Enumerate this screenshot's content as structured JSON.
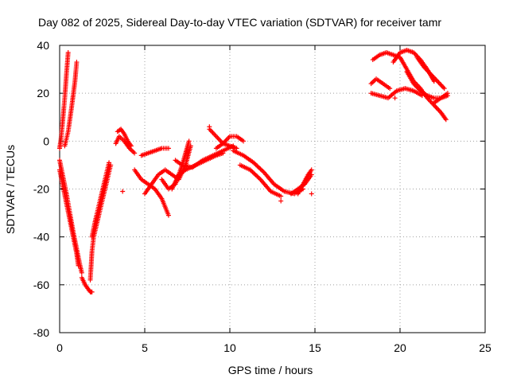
{
  "chart_data": {
    "type": "scatter",
    "title": "Day 082 of 2025, Sidereal Day-to-day VTEC variation (SDTVAR) for receiver tamr",
    "xlabel": "GPS time / hours",
    "ylabel": "SDTVAR / TECUs",
    "xlim": [
      0,
      25
    ],
    "ylim": [
      -80,
      40
    ],
    "xticks": [
      0,
      5,
      10,
      15,
      20,
      25
    ],
    "yticks": [
      -80,
      -60,
      -40,
      -20,
      0,
      20,
      40
    ],
    "grid": true,
    "marker": "+",
    "color": "#ff0000",
    "tracks": [
      {
        "x": [
          0.0,
          0.1,
          0.2,
          0.3,
          0.4,
          0.5
        ],
        "y": [
          -3,
          2,
          10,
          18,
          28,
          37
        ]
      },
      {
        "x": [
          0.3,
          0.5,
          0.7,
          0.9,
          1.0
        ],
        "y": [
          -2,
          4,
          14,
          25,
          33
        ]
      },
      {
        "x": [
          0.0,
          0.2,
          0.4,
          0.6,
          0.8,
          1.0,
          1.2,
          1.3
        ],
        "y": [
          -8,
          -15,
          -22,
          -30,
          -38,
          -45,
          -52,
          -55
        ]
      },
      {
        "x": [
          0.0,
          0.2,
          0.4,
          0.6,
          0.8,
          1.0,
          1.1
        ],
        "y": [
          -12,
          -19,
          -26,
          -33,
          -40,
          -47,
          -52
        ]
      },
      {
        "x": [
          1.3,
          1.5,
          1.7,
          1.8,
          1.9
        ],
        "y": [
          -57,
          -60,
          -62,
          -63,
          -63
        ]
      },
      {
        "x": [
          1.8,
          1.9,
          2.0,
          2.2,
          2.4,
          2.6,
          2.8,
          3.0
        ],
        "y": [
          -58,
          -46,
          -40,
          -34,
          -28,
          -22,
          -16,
          -10
        ]
      },
      {
        "x": [
          1.9,
          2.1,
          2.3,
          2.5,
          2.7,
          2.9
        ],
        "y": [
          -40,
          -33,
          -27,
          -21,
          -15,
          -9
        ]
      },
      {
        "x": [
          3.4,
          3.6,
          3.8,
          4.0,
          4.2
        ],
        "y": [
          4,
          5,
          3,
          0,
          -2
        ]
      },
      {
        "x": [
          3.3,
          3.5,
          3.8,
          4.1,
          4.4
        ],
        "y": [
          -1,
          2,
          0,
          -3,
          -5
        ]
      },
      {
        "x": [
          4.4,
          4.8,
          5.2,
          5.6,
          6.0,
          6.4
        ],
        "y": [
          -12,
          -16,
          -18,
          -20,
          -24,
          -31
        ]
      },
      {
        "x": [
          4.8,
          5.2,
          5.6,
          6.0,
          6.4
        ],
        "y": [
          -6,
          -5,
          -4,
          -3,
          -3
        ]
      },
      {
        "x": [
          5.0,
          5.4,
          5.8,
          6.2,
          6.6,
          7.0,
          7.4,
          7.7
        ],
        "y": [
          -22,
          -18,
          -14,
          -12,
          -14,
          -16,
          -10,
          -2
        ]
      },
      {
        "x": [
          6.0,
          6.4,
          6.8,
          7.2,
          7.6
        ],
        "y": [
          -16,
          -20,
          -18,
          -10,
          0
        ]
      },
      {
        "x": [
          6.6,
          7.0,
          7.4,
          8.0,
          8.6,
          9.2,
          9.6
        ],
        "y": [
          -20,
          -14,
          -12,
          -10,
          -8,
          -6,
          -5
        ]
      },
      {
        "x": [
          6.8,
          7.2,
          7.8,
          8.4,
          9.0,
          9.6,
          10.2
        ],
        "y": [
          -8,
          -10,
          -11,
          -8,
          -6,
          -4,
          -2
        ]
      },
      {
        "x": [
          8.8,
          9.2,
          9.6,
          10.0,
          10.4
        ],
        "y": [
          5,
          2,
          -1,
          -2,
          -3
        ]
      },
      {
        "x": [
          9.2,
          9.6,
          10.0,
          10.4,
          10.8
        ],
        "y": [
          -3,
          -1,
          2,
          2,
          0
        ]
      },
      {
        "x": [
          10.2,
          10.8,
          11.4,
          12.0,
          12.6,
          13.2,
          13.8,
          14.3
        ],
        "y": [
          -4,
          -6,
          -9,
          -13,
          -18,
          -21,
          -22,
          -20
        ]
      },
      {
        "x": [
          10.6,
          11.2,
          11.8,
          12.4,
          13.0
        ],
        "y": [
          -10,
          -12,
          -16,
          -21,
          -23
        ]
      },
      {
        "x": [
          14.0,
          14.3,
          14.6,
          14.8
        ],
        "y": [
          -22,
          -18,
          -14,
          -12
        ]
      },
      {
        "x": [
          13.6,
          14.0,
          14.4,
          14.8
        ],
        "y": [
          -22,
          -20,
          -18,
          -14
        ]
      },
      {
        "x": [
          18.4,
          18.8,
          19.2,
          19.6,
          20.0
        ],
        "y": [
          34,
          36,
          37,
          36,
          35
        ]
      },
      {
        "x": [
          19.6,
          20.0,
          20.4,
          20.8,
          21.2,
          21.6,
          22.0
        ],
        "y": [
          33,
          37,
          38,
          37,
          34,
          30,
          25
        ]
      },
      {
        "x": [
          20.0,
          20.4,
          20.8,
          21.2,
          21.6,
          22.0,
          22.4,
          22.7
        ],
        "y": [
          35,
          30,
          25,
          22,
          18,
          15,
          12,
          9
        ]
      },
      {
        "x": [
          20.4,
          20.8,
          21.2,
          21.6,
          22.0,
          22.4,
          22.8
        ],
        "y": [
          29,
          24,
          21,
          19,
          18,
          18,
          19
        ]
      },
      {
        "x": [
          21.0,
          21.4,
          21.8,
          22.2,
          22.6
        ],
        "y": [
          35,
          31,
          28,
          25,
          22
        ]
      },
      {
        "x": [
          18.3,
          18.8,
          19.3,
          19.8,
          20.3,
          20.8,
          21.3
        ],
        "y": [
          20,
          19,
          18,
          21,
          22,
          21,
          19
        ]
      },
      {
        "x": [
          18.3,
          18.6,
          19.0,
          19.4
        ],
        "y": [
          24,
          26,
          24,
          22
        ]
      },
      {
        "x": [
          22.0,
          22.4,
          22.8
        ],
        "y": [
          16,
          18,
          20
        ]
      }
    ],
    "isolated_points": [
      {
        "x": 3.7,
        "y": -21
      },
      {
        "x": 13.0,
        "y": -25
      },
      {
        "x": 14.8,
        "y": -22
      },
      {
        "x": 19.7,
        "y": 18
      },
      {
        "x": 8.8,
        "y": 6
      }
    ]
  }
}
